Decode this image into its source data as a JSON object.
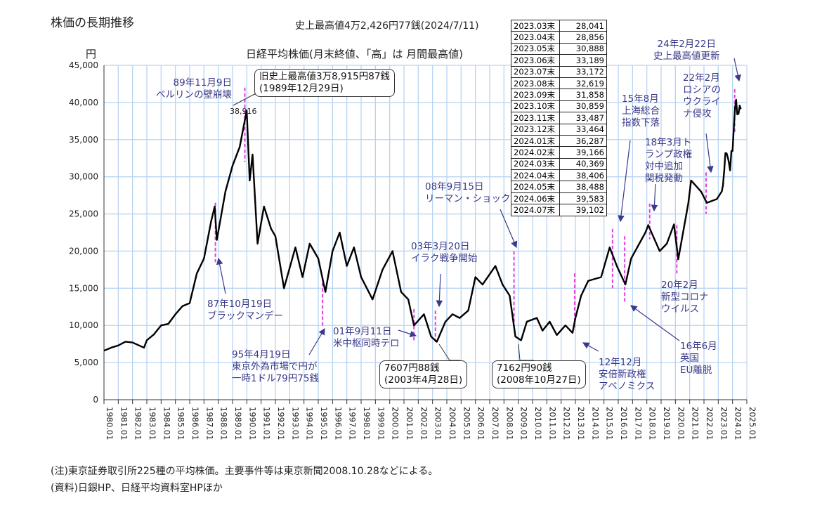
{
  "header": {
    "title": "株価の長期推移",
    "record_high": "史上最高値4万2,426円77銭(2024/7/11)",
    "chart_subtitle": "日経平均株価(月末終値、「高」は 月間最高値)",
    "yunit": "円"
  },
  "callouts": {
    "old_high_1": "旧史上最高値3万8,915円87銭",
    "old_high_2": "(1989年12月29日)",
    "peak_label": "38,916",
    "low2003_1": "7607円88銭",
    "low2003_2": "(2003年4月28日)",
    "low2008_1": "7162円90銭",
    "low2008_2": "(2008年10月27日)"
  },
  "annotations": {
    "berlin": "89年11月9日\nベルリンの壁崩壊",
    "black_monday": "87年10月19日\nブラックマンデー",
    "yen1995": "95年4月19日\n東京外為市場で円が\n一時1ドル79円75銭",
    "sept11": "01年9月11日\n米中枢同時テロ",
    "iraq": "03年3月20日\nイラク戦争開始",
    "lehman": "08年9月15日\nリーマン・ショック",
    "abe": "12年12月\n安倍新政権\nアベノミクス",
    "shanghai": "15年8月\n上海総合\n指数下落",
    "trump": "18年3月ト\nランプ政権\n対中追加\n関税発動",
    "brexit": "16年6月\n英国\nEU離脱",
    "covid": "20年2月\n新型コロナ\nウイルス",
    "ukraine": "22年2月\nロシアの\nウクライ\nナ侵攻",
    "record2024": "24年2月22日\n史上最高値更新"
  },
  "table": [
    [
      "2023.03末",
      "28,041"
    ],
    [
      "2023.04末",
      "28,856"
    ],
    [
      "2023.05末",
      "30,888"
    ],
    [
      "2023.06末",
      "33,189"
    ],
    [
      "2023.07末",
      "33,172"
    ],
    [
      "2023.08末",
      "32,619"
    ],
    [
      "2023.09末",
      "31,858"
    ],
    [
      "2023.10末",
      "30,859"
    ],
    [
      "2023.11末",
      "33,487"
    ],
    [
      "2023.12末",
      "33,464"
    ],
    [
      "2024.01末",
      "36,287"
    ],
    [
      "2024.02末",
      "39,166"
    ],
    [
      "2024.03末",
      "40,369"
    ],
    [
      "2024.04末",
      "38,406"
    ],
    [
      "2024.05末",
      "38,488"
    ],
    [
      "2024.06末",
      "39,583"
    ],
    [
      "2024.07末",
      "39,102"
    ]
  ],
  "footer": {
    "note": "(注)東京証券取引所225種の平均株価。主要事件等は東京新聞2008.10.28などによる。",
    "source": "(資料)日銀HP、日経平均資料室HPほか"
  },
  "chart_data": {
    "type": "line",
    "title": "日経平均株価(月末終値、「高」は 月間最高値)",
    "ylabel": "円",
    "ylim": [
      0,
      45000
    ],
    "xlim": [
      1980,
      2025
    ],
    "yticks": [
      "0",
      "5,000",
      "10,000",
      "15,000",
      "20,000",
      "25,000",
      "30,000",
      "35,000",
      "40,000",
      "45,000"
    ],
    "xticks": [
      "1980.01",
      "1981.01",
      "1982.01",
      "1983.01",
      "1984.01",
      "1985.01",
      "1986.01",
      "1987.01",
      "1988.01",
      "1989.01",
      "1990.01",
      "1991.01",
      "1992.01",
      "1993.01",
      "1994.01",
      "1995.01",
      "1996.01",
      "1997.01",
      "1998.01",
      "1999.01",
      "2000.01",
      "2001.01",
      "2002.01",
      "2003.01",
      "2004.01",
      "2005.01",
      "2006.01",
      "2007.01",
      "2008.01",
      "2009.01",
      "2010.01",
      "2011.01",
      "2012.01",
      "2013.01",
      "2014.01",
      "2015.01",
      "2016.01",
      "2017.01",
      "2018.01",
      "2019.01",
      "2020.01",
      "2021.01",
      "2022.01",
      "2023.01",
      "2024.01",
      "2025.01"
    ],
    "grid": true,
    "series": [
      {
        "name": "日経平均株価",
        "points": [
          [
            1980.0,
            6600
          ],
          [
            1980.5,
            7000
          ],
          [
            1981.0,
            7300
          ],
          [
            1981.5,
            7800
          ],
          [
            1982.0,
            7700
          ],
          [
            1982.8,
            7000
          ],
          [
            1983.0,
            8000
          ],
          [
            1983.5,
            8800
          ],
          [
            1984.0,
            10000
          ],
          [
            1984.5,
            10200
          ],
          [
            1985.0,
            11500
          ],
          [
            1985.5,
            12600
          ],
          [
            1986.0,
            13000
          ],
          [
            1986.5,
            17000
          ],
          [
            1987.0,
            19000
          ],
          [
            1987.5,
            24000
          ],
          [
            1987.75,
            26000
          ],
          [
            1987.9,
            21500
          ],
          [
            1988.5,
            28000
          ],
          [
            1989.0,
            31500
          ],
          [
            1989.5,
            34000
          ],
          [
            1989.99,
            38916
          ],
          [
            1990.2,
            29500
          ],
          [
            1990.4,
            33000
          ],
          [
            1990.75,
            21000
          ],
          [
            1991.2,
            26000
          ],
          [
            1991.7,
            23000
          ],
          [
            1992.0,
            22000
          ],
          [
            1992.6,
            15000
          ],
          [
            1993.4,
            20500
          ],
          [
            1993.9,
            16500
          ],
          [
            1994.4,
            21000
          ],
          [
            1995.0,
            19000
          ],
          [
            1995.5,
            14500
          ],
          [
            1996.0,
            20000
          ],
          [
            1996.5,
            22500
          ],
          [
            1997.0,
            18000
          ],
          [
            1997.5,
            20500
          ],
          [
            1998.0,
            16500
          ],
          [
            1998.8,
            13500
          ],
          [
            1999.5,
            17500
          ],
          [
            2000.2,
            20000
          ],
          [
            2000.8,
            14500
          ],
          [
            2001.3,
            13500
          ],
          [
            2001.7,
            10000
          ],
          [
            2002.4,
            11500
          ],
          [
            2002.9,
            8500
          ],
          [
            2003.3,
            7800
          ],
          [
            2003.9,
            10500
          ],
          [
            2004.4,
            11500
          ],
          [
            2004.9,
            11000
          ],
          [
            2005.5,
            12000
          ],
          [
            2006.0,
            16500
          ],
          [
            2006.5,
            15500
          ],
          [
            2007.4,
            18000
          ],
          [
            2007.9,
            15500
          ],
          [
            2008.4,
            14000
          ],
          [
            2008.8,
            8500
          ],
          [
            2009.2,
            8000
          ],
          [
            2009.6,
            10500
          ],
          [
            2010.3,
            11000
          ],
          [
            2010.7,
            9300
          ],
          [
            2011.2,
            10500
          ],
          [
            2011.7,
            8700
          ],
          [
            2012.3,
            10000
          ],
          [
            2012.8,
            9000
          ],
          [
            2013.0,
            11000
          ],
          [
            2013.4,
            14000
          ],
          [
            2013.9,
            16000
          ],
          [
            2014.8,
            16500
          ],
          [
            2015.4,
            20500
          ],
          [
            2015.9,
            18000
          ],
          [
            2016.5,
            15500
          ],
          [
            2016.9,
            19000
          ],
          [
            2017.9,
            22500
          ],
          [
            2018.1,
            23500
          ],
          [
            2018.9,
            20000
          ],
          [
            2019.4,
            21000
          ],
          [
            2019.9,
            23600
          ],
          [
            2020.2,
            18900
          ],
          [
            2020.9,
            26400
          ],
          [
            2021.1,
            29500
          ],
          [
            2021.8,
            28000
          ],
          [
            2022.2,
            26500
          ],
          [
            2022.9,
            27000
          ],
          [
            2023.0,
            27300
          ],
          [
            2023.25,
            28041
          ],
          [
            2023.33,
            28856
          ],
          [
            2023.42,
            30888
          ],
          [
            2023.5,
            33189
          ],
          [
            2023.58,
            33172
          ],
          [
            2023.67,
            32619
          ],
          [
            2023.75,
            31858
          ],
          [
            2023.83,
            30859
          ],
          [
            2023.92,
            33487
          ],
          [
            2024.0,
            33464
          ],
          [
            2024.08,
            36287
          ],
          [
            2024.17,
            39166
          ],
          [
            2024.25,
            40369
          ],
          [
            2024.33,
            38406
          ],
          [
            2024.42,
            38488
          ],
          [
            2024.5,
            39583
          ],
          [
            2024.58,
            39102
          ]
        ]
      }
    ],
    "event_lines": [
      [
        1987.8,
        18500,
        26500
      ],
      [
        1989.86,
        32000,
        42000
      ],
      [
        1995.3,
        9800,
        16500
      ],
      [
        2001.7,
        8000,
        12200
      ],
      [
        2003.2,
        7500,
        12000
      ],
      [
        2008.7,
        9400,
        20000
      ],
      [
        2012.95,
        9400,
        17000
      ],
      [
        2015.6,
        15000,
        23000
      ],
      [
        2016.45,
        13000,
        22000
      ],
      [
        2018.2,
        21600,
        26400
      ],
      [
        2020.1,
        17000,
        23500
      ],
      [
        2022.15,
        25000,
        30600
      ],
      [
        2024.15,
        35800,
        41800
      ]
    ]
  }
}
